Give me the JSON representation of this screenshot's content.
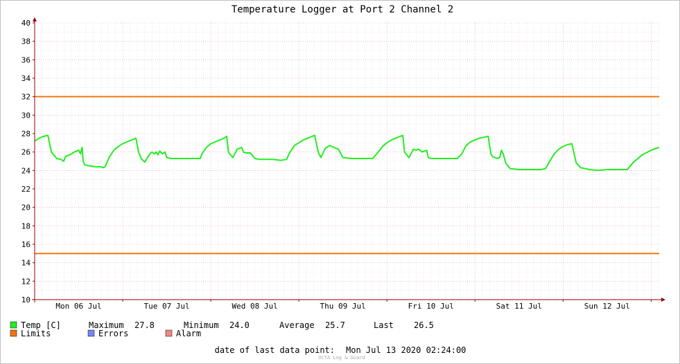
{
  "colors": {
    "temp": "#22ee22",
    "limits": "#ee7711",
    "errors": "#7788ee",
    "alarm": "#ee8888",
    "grid_major": "#e89a9a",
    "grid_minor": "#d8d8d8",
    "axis": "#900000"
  },
  "chart_data": {
    "type": "line",
    "title": "Temperature Logger at Port 2 Channel 2",
    "ylim": [
      10,
      40
    ],
    "y_ticks": [
      "10",
      "12",
      "14",
      "16",
      "18",
      "20",
      "22",
      "24",
      "26",
      "28",
      "30",
      "32",
      "34",
      "36",
      "38",
      "40"
    ],
    "x_tick_labels": [
      "Mon 06 Jul",
      "Tue 07 Jul",
      "Wed 08 Jul",
      "Thu 09 Jul",
      "Fri 10 Jul",
      "Sat 11 Jul",
      "Sun 12 Jul"
    ],
    "x_range_days": [
      0,
      7.0917
    ],
    "grid": true,
    "limits": {
      "upper": 32,
      "lower": 15
    },
    "series": [
      {
        "name": "Temp [C]",
        "x_days": [
          0,
          0.05,
          0.1,
          0.15,
          0.16,
          0.19,
          0.25,
          0.3,
          0.33,
          0.35,
          0.4,
          0.45,
          0.5,
          0.52,
          0.54,
          0.55,
          0.57,
          0.62,
          0.7,
          0.75,
          0.78,
          0.8,
          0.85,
          0.9,
          0.95,
          1.0,
          1.05,
          1.1,
          1.15,
          1.18,
          1.21,
          1.25,
          1.3,
          1.33,
          1.36,
          1.38,
          1.4,
          1.42,
          1.45,
          1.48,
          1.5,
          1.55,
          1.6,
          1.7,
          1.8,
          1.88,
          1.9,
          1.95,
          2.0,
          2.05,
          2.1,
          2.15,
          2.18,
          2.2,
          2.25,
          2.3,
          2.35,
          2.37,
          2.4,
          2.45,
          2.5,
          2.55,
          2.6,
          2.7,
          2.8,
          2.86,
          2.9,
          2.95,
          3.0,
          3.05,
          3.1,
          3.15,
          3.18,
          3.22,
          3.25,
          3.3,
          3.35,
          3.4,
          3.45,
          3.5,
          3.6,
          3.7,
          3.84,
          3.9,
          3.95,
          4.0,
          4.05,
          4.1,
          4.15,
          4.18,
          4.2,
          4.25,
          4.3,
          4.33,
          4.36,
          4.4,
          4.45,
          4.47,
          4.5,
          4.6,
          4.7,
          4.8,
          4.85,
          4.9,
          4.95,
          5.0,
          5.05,
          5.1,
          5.15,
          5.18,
          5.2,
          5.25,
          5.28,
          5.3,
          5.32,
          5.35,
          5.4,
          5.5,
          5.6,
          5.7,
          5.75,
          5.8,
          5.85,
          5.9,
          5.95,
          6.0,
          6.05,
          6.1,
          6.15,
          6.2,
          6.3,
          6.4,
          6.5,
          6.6,
          6.7,
          6.73,
          6.8,
          6.9,
          7.0,
          7.09
        ],
        "values": [
          27.2,
          27.5,
          27.7,
          27.8,
          27.4,
          26.0,
          25.3,
          25.2,
          25.0,
          25.5,
          25.7,
          26.0,
          26.2,
          25.8,
          26.5,
          25.0,
          24.6,
          24.5,
          24.4,
          24.4,
          24.3,
          24.4,
          25.5,
          26.2,
          26.6,
          26.9,
          27.1,
          27.3,
          27.5,
          26.0,
          25.3,
          24.9,
          25.7,
          26.0,
          25.8,
          26.0,
          25.7,
          26.1,
          25.8,
          26.0,
          25.4,
          25.3,
          25.3,
          25.3,
          25.3,
          25.3,
          25.8,
          26.5,
          26.9,
          27.1,
          27.3,
          27.5,
          27.7,
          26.0,
          25.4,
          26.3,
          26.5,
          26.0,
          25.9,
          25.9,
          25.3,
          25.2,
          25.2,
          25.2,
          25.1,
          25.2,
          26.0,
          26.7,
          27.0,
          27.3,
          27.5,
          27.7,
          27.8,
          26.0,
          25.4,
          26.4,
          26.7,
          26.5,
          26.3,
          25.4,
          25.3,
          25.3,
          25.3,
          26.0,
          26.6,
          27.0,
          27.3,
          27.5,
          27.7,
          27.8,
          26.0,
          25.4,
          26.3,
          26.2,
          26.3,
          26.0,
          26.2,
          25.4,
          25.3,
          25.3,
          25.3,
          25.3,
          25.8,
          26.7,
          27.1,
          27.3,
          27.5,
          27.6,
          27.7,
          25.8,
          25.5,
          25.3,
          25.4,
          26.2,
          25.8,
          24.8,
          24.2,
          24.1,
          24.1,
          24.1,
          24.1,
          24.2,
          25.0,
          25.8,
          26.3,
          26.6,
          26.8,
          26.9,
          24.8,
          24.3,
          24.1,
          24.0,
          24.1,
          24.1,
          24.1,
          24.1,
          24.9,
          25.7,
          26.2,
          26.5
        ]
      }
    ]
  },
  "legend": {
    "temp_label": "Temp [C]",
    "limits_label": "Limits",
    "errors_label": "Errors",
    "alarm_label": "Alarm",
    "stats": [
      {
        "label": "Maximum",
        "value": "27.8"
      },
      {
        "label": "Minimum",
        "value": "24.0"
      },
      {
        "label": "Average",
        "value": "25.7"
      },
      {
        "label": "Last",
        "value": "26.5"
      }
    ]
  },
  "footer": {
    "date_label": "date of last data point:",
    "date_value": "Mon Jul 13 2020 02:24:00",
    "watermark": "OCTA Log & Guard"
  }
}
